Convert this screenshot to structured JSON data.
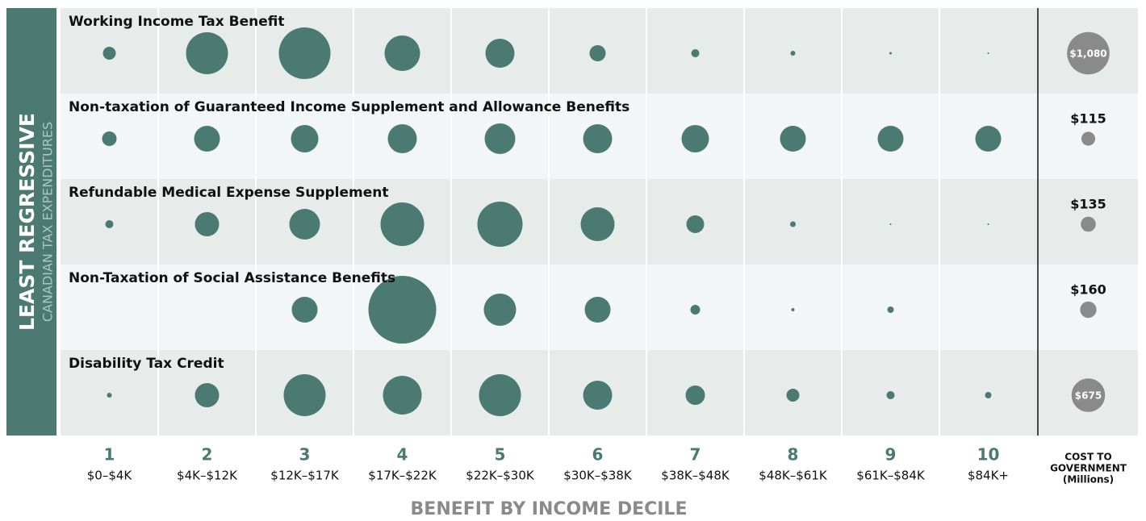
{
  "chart_data": {
    "type": "bubble",
    "side_title": "LEAST REGRESSIVE",
    "side_subtitle": "CANADIAN TAX EXPENDITURES",
    "x_axis_title": "BENEFIT BY INCOME DECILE",
    "categories": [
      "1",
      "2",
      "3",
      "4",
      "5",
      "6",
      "7",
      "8",
      "9",
      "10"
    ],
    "category_ranges": [
      "$0–$4K",
      "$4K–$12K",
      "$12K–$17K",
      "$17K–$22K",
      "$22K–$30K",
      "$30K–$38K",
      "$38K–$48K",
      "$48K–$61K",
      "$61K–$84K",
      "$84K+"
    ],
    "cost_axis_label": [
      "COST TO",
      "GOVERNMENT",
      "(Millions)"
    ],
    "color": "#4a7a72",
    "cost_color": "#8a8a8a",
    "series": [
      {
        "name": "Working Income Tax Benefit",
        "values": [
          8,
          26,
          32,
          22,
          18,
          10,
          5,
          3,
          1.5,
          1
        ],
        "cost": 1080,
        "cost_label": "$1,080"
      },
      {
        "name": "Non-taxation of Guaranteed Income Supplement and Allowance Benefits",
        "values": [
          9,
          16,
          17,
          18,
          19,
          18,
          17,
          16,
          16,
          16
        ],
        "cost": 115,
        "cost_label": "$115"
      },
      {
        "name": "Refundable Medical Expense Supplement",
        "values": [
          5,
          15,
          19,
          27,
          28,
          21,
          11,
          3.5,
          1,
          1
        ],
        "cost": 135,
        "cost_label": "$135"
      },
      {
        "name": "Non-Taxation of Social Assistance Benefits",
        "values": [
          null,
          null,
          16,
          42,
          20,
          16,
          6,
          2,
          4,
          null
        ],
        "cost": 160,
        "cost_label": "$160"
      },
      {
        "name": "Disability Tax Credit",
        "values": [
          3,
          15,
          26,
          24,
          26,
          18,
          12,
          8,
          5,
          4
        ],
        "cost": 675,
        "cost_label": "$675"
      }
    ]
  }
}
